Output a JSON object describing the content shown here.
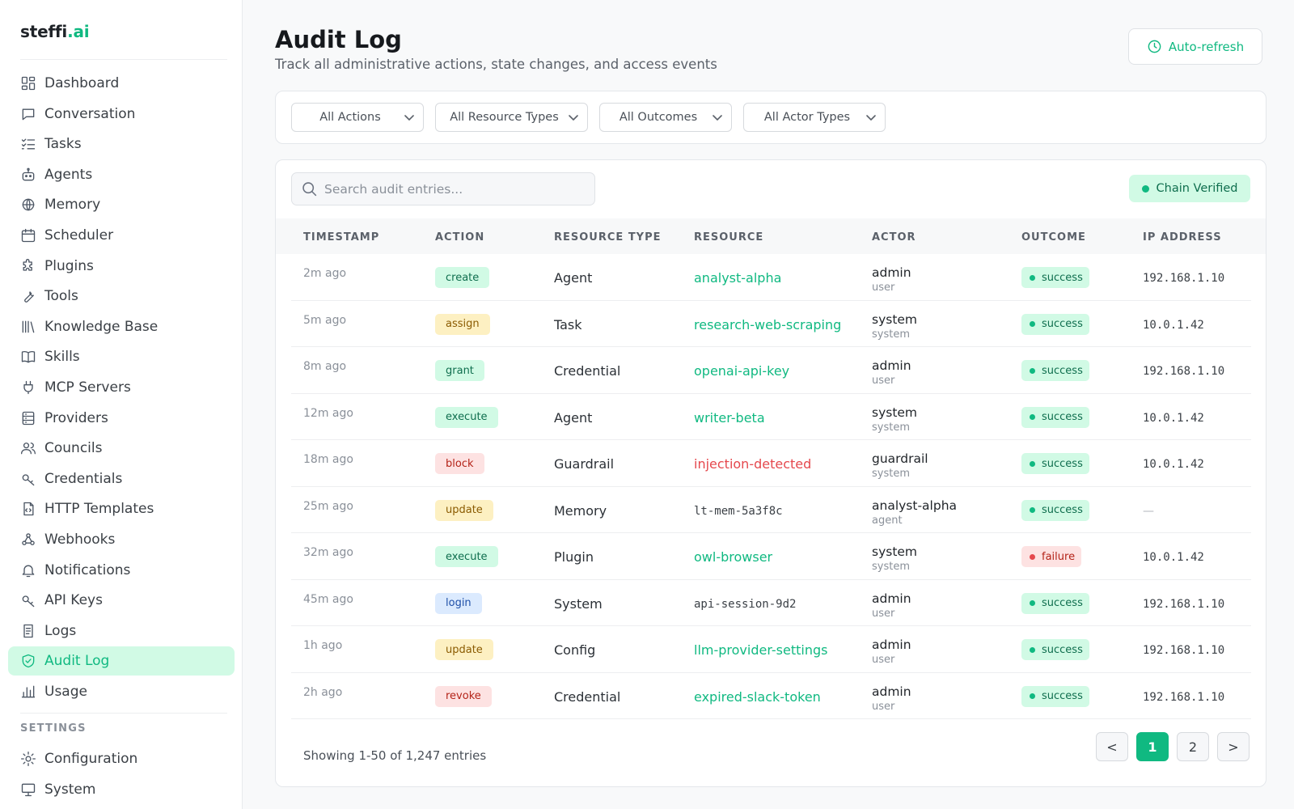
{
  "brand": {
    "name": "steffi",
    "dot": ".",
    "suffix": "ai"
  },
  "sidebar": {
    "items": [
      {
        "label": "Dashboard",
        "icon": "dashboard-icon"
      },
      {
        "label": "Conversation",
        "icon": "chat-icon"
      },
      {
        "label": "Tasks",
        "icon": "tasks-icon"
      },
      {
        "label": "Agents",
        "icon": "bot-icon"
      },
      {
        "label": "Memory",
        "icon": "brain-icon"
      },
      {
        "label": "Scheduler",
        "icon": "calendar-icon"
      },
      {
        "label": "Plugins",
        "icon": "puzzle-icon"
      },
      {
        "label": "Tools",
        "icon": "wrench-icon"
      },
      {
        "label": "Knowledge Base",
        "icon": "library-icon"
      },
      {
        "label": "Skills",
        "icon": "book-icon"
      },
      {
        "label": "MCP Servers",
        "icon": "plug-icon"
      },
      {
        "label": "Providers",
        "icon": "server-icon"
      },
      {
        "label": "Councils",
        "icon": "users-icon"
      },
      {
        "label": "Credentials",
        "icon": "key-icon"
      },
      {
        "label": "HTTP Templates",
        "icon": "file-code-icon"
      },
      {
        "label": "Webhooks",
        "icon": "webhook-icon"
      },
      {
        "label": "Notifications",
        "icon": "bell-icon"
      },
      {
        "label": "API Keys",
        "icon": "key-icon"
      },
      {
        "label": "Logs",
        "icon": "logs-icon"
      },
      {
        "label": "Audit Log",
        "icon": "shield-check-icon",
        "active": true
      },
      {
        "label": "Usage",
        "icon": "bar-chart-icon"
      }
    ],
    "settings_heading": "SETTINGS",
    "settings_items": [
      {
        "label": "Configuration",
        "icon": "sun-gear-icon"
      },
      {
        "label": "System",
        "icon": "monitor-icon"
      }
    ]
  },
  "header": {
    "title": "Audit Log",
    "subtitle": "Track all administrative actions, state changes, and access events",
    "auto_refresh_label": "Auto-refresh"
  },
  "filters": [
    {
      "label": "All Actions"
    },
    {
      "label": "All Resource Types"
    },
    {
      "label": "All Outcomes"
    },
    {
      "label": "All Actor Types"
    }
  ],
  "search": {
    "placeholder": "Search audit entries..."
  },
  "chain_status": "Chain Verified",
  "table": {
    "columns": [
      "TIMESTAMP",
      "ACTION",
      "RESOURCE TYPE",
      "RESOURCE",
      "ACTOR",
      "OUTCOME",
      "IP ADDRESS"
    ],
    "rows": [
      {
        "timestamp": "2m ago",
        "action": "create",
        "action_color": "green",
        "resource_type": "Agent",
        "resource": "analyst-alpha",
        "resource_style": "link",
        "actor": "admin",
        "actor_type": "user",
        "outcome": "success",
        "ip": "192.168.1.10"
      },
      {
        "timestamp": "5m ago",
        "action": "assign",
        "action_color": "yellow",
        "resource_type": "Task",
        "resource": "research-web-scraping",
        "resource_style": "link",
        "actor": "system",
        "actor_type": "system",
        "outcome": "success",
        "ip": "10.0.1.42"
      },
      {
        "timestamp": "8m ago",
        "action": "grant",
        "action_color": "green",
        "resource_type": "Credential",
        "resource": "openai-api-key",
        "resource_style": "link",
        "actor": "admin",
        "actor_type": "user",
        "outcome": "success",
        "ip": "192.168.1.10"
      },
      {
        "timestamp": "12m ago",
        "action": "execute",
        "action_color": "green",
        "resource_type": "Agent",
        "resource": "writer-beta",
        "resource_style": "link",
        "actor": "system",
        "actor_type": "system",
        "outcome": "success",
        "ip": "10.0.1.42"
      },
      {
        "timestamp": "18m ago",
        "action": "block",
        "action_color": "red",
        "resource_type": "Guardrail",
        "resource": "injection-detected",
        "resource_style": "danger",
        "actor": "guardrail",
        "actor_type": "system",
        "outcome": "success",
        "ip": "10.0.1.42"
      },
      {
        "timestamp": "25m ago",
        "action": "update",
        "action_color": "yellow",
        "resource_type": "Memory",
        "resource": "lt-mem-5a3f8c",
        "resource_style": "mono",
        "actor": "analyst-alpha",
        "actor_type": "agent",
        "outcome": "success",
        "ip": "—"
      },
      {
        "timestamp": "32m ago",
        "action": "execute",
        "action_color": "green",
        "resource_type": "Plugin",
        "resource": "owl-browser",
        "resource_style": "link",
        "actor": "system",
        "actor_type": "system",
        "outcome": "failure",
        "ip": "10.0.1.42"
      },
      {
        "timestamp": "45m ago",
        "action": "login",
        "action_color": "blue",
        "resource_type": "System",
        "resource": "api-session-9d2",
        "resource_style": "mono",
        "actor": "admin",
        "actor_type": "user",
        "outcome": "success",
        "ip": "192.168.1.10"
      },
      {
        "timestamp": "1h ago",
        "action": "update",
        "action_color": "yellow",
        "resource_type": "Config",
        "resource": "llm-provider-settings",
        "resource_style": "link",
        "actor": "admin",
        "actor_type": "user",
        "outcome": "success",
        "ip": "192.168.1.10"
      },
      {
        "timestamp": "2h ago",
        "action": "revoke",
        "action_color": "red",
        "resource_type": "Credential",
        "resource": "expired-slack-token",
        "resource_style": "link",
        "actor": "admin",
        "actor_type": "user",
        "outcome": "success",
        "ip": "192.168.1.10"
      }
    ]
  },
  "pagination": {
    "showing": "Showing 1-50 of 1,247 entries",
    "prev": "<",
    "pages": [
      "1",
      "2"
    ],
    "current": "1",
    "next": ">"
  },
  "colors": {
    "accent": "#10b981",
    "danger": "#e5484d"
  }
}
